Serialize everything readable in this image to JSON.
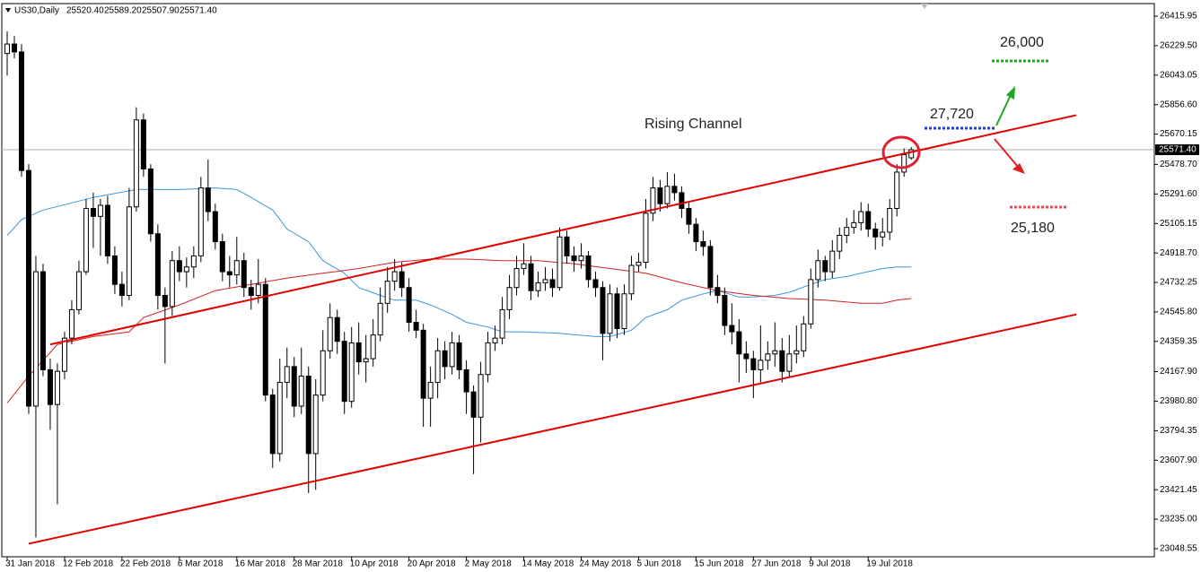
{
  "chart_data": {
    "type": "candlestick",
    "symbol": "US30,Daily",
    "header_values": [
      "25520.40",
      "25589.20",
      "25507.90",
      "25571.40"
    ],
    "price_tag": "25571.40",
    "annotations": [
      "Rising Channel",
      "26,000",
      "27,720",
      "25,180"
    ],
    "xlim": [
      -0.75,
      159.875
    ],
    "ylim": [
      23003,
      26490
    ],
    "yticks": [
      26415.95,
      {
        "value": 26229.5,
        "label": "26229.50"
      },
      26043.05,
      {
        "value": 25856.6,
        "label": "25856.60"
      },
      25670.15,
      {
        "value": 25478.7,
        "label": "25478.70"
      },
      {
        "value": 25291.6,
        "label": "25291.60"
      },
      25105.15,
      {
        "value": 24918.7,
        "label": "24918.70"
      },
      24732.25,
      {
        "value": 24545.8,
        "label": "24545.80"
      },
      24359.35,
      {
        "value": 24167.9,
        "label": "24167.90"
      },
      {
        "value": 23980.8,
        "label": "23980.80"
      },
      23794.35,
      {
        "value": 23607.9,
        "label": "23607.90"
      },
      23421.45,
      {
        "value": 23235,
        "label": "23235.00"
      },
      23048.55
    ],
    "xticks": [
      {
        "value": 0,
        "label": "31 Jan 2018"
      },
      {
        "value": 8,
        "label": "12 Feb 2018"
      },
      {
        "value": 16,
        "label": "22 Feb 2018"
      },
      {
        "value": 24,
        "label": "6 Mar 2018"
      },
      {
        "value": 32,
        "label": "16 Mar 2018"
      },
      {
        "value": 40,
        "label": "28 Mar 2018"
      },
      {
        "value": 48,
        "label": "10 Apr 2018"
      },
      {
        "value": 56,
        "label": "20 Apr 2018"
      },
      {
        "value": 64,
        "label": "2 May 2018"
      },
      {
        "value": 72,
        "label": "14 May 2018"
      },
      {
        "value": 80,
        "label": "24 May 2018"
      },
      {
        "value": 88,
        "label": "5 Jun 2018"
      },
      {
        "value": 96,
        "label": "15 Jun 2018"
      },
      {
        "value": 104,
        "label": "27 Jun 2018"
      },
      {
        "value": 112,
        "label": "9 Jul 2018"
      },
      {
        "value": 120,
        "label": "19 Jul 2018"
      }
    ],
    "up_color": "#ffffff",
    "down_color": "#000000",
    "current_price_line": true,
    "open": [
      26180,
      26240,
      26190,
      25440,
      23950,
      24800,
      24180,
      23960,
      24170,
      24380,
      24560,
      24800,
      25200,
      25150,
      25220,
      24900,
      24720,
      24650,
      25210,
      25760,
      25450,
      25040,
      24650,
      24580,
      24870,
      24800,
      24830,
      24900,
      25330,
      25180,
      24990,
      24800,
      24780,
      24870,
      24700,
      24650,
      24720,
      24020,
      23650,
      24100,
      24200,
      23950,
      24140,
      23650,
      24020,
      24300,
      24510,
      24360,
      23980,
      24350,
      24230,
      24250,
      24400,
      24600,
      24740,
      24800,
      24700,
      24480,
      24430,
      24000,
      24100,
      24300,
      24200,
      24350,
      24180,
      24040,
      23880,
      24150,
      24350,
      24380,
      24560,
      24700,
      24820,
      24850,
      24680,
      24730,
      24750,
      24700,
      25020,
      24900,
      24870,
      24900,
      24750,
      24700,
      24410,
      24660,
      24440,
      24660,
      24840,
      24860,
      25170,
      25330,
      25230,
      25340,
      25300,
      25200,
      25100,
      24990,
      24960,
      24700,
      24650,
      24460,
      24420,
      24280,
      24250,
      24180,
      24240,
      24280,
      24300,
      24170,
      24280,
      24300,
      24470,
      24750,
      24870,
      24800,
      24930,
      25030,
      25080,
      25110,
      25180,
      25070,
      25020,
      25050,
      25200,
      25430,
      25520.4
    ],
    "high": [
      26320,
      26290,
      26240,
      25480,
      24900,
      24850,
      24250,
      24220,
      24420,
      24620,
      24870,
      25260,
      25300,
      25260,
      25280,
      24960,
      24800,
      25330,
      25840,
      25800,
      25480,
      25100,
      24700,
      24930,
      24960,
      24890,
      24960,
      25400,
      25510,
      25230,
      25040,
      24900,
      25020,
      24920,
      24750,
      24880,
      24760,
      24060,
      24250,
      24320,
      24260,
      24320,
      24200,
      24120,
      24430,
      24600,
      24560,
      24420,
      24450,
      24480,
      24400,
      24500,
      24700,
      24830,
      24880,
      24860,
      24760,
      24560,
      24470,
      24200,
      24380,
      24360,
      24420,
      24400,
      24240,
      24080,
      24230,
      24420,
      24460,
      24640,
      24780,
      24900,
      24980,
      24900,
      24800,
      24830,
      24820,
      25080,
      25060,
      24960,
      24980,
      24930,
      24800,
      24740,
      24720,
      24700,
      24720,
      24900,
      24920,
      25260,
      25400,
      25380,
      25430,
      25420,
      25340,
      25240,
      25140,
      25060,
      25000,
      24780,
      24700,
      24600,
      24500,
      24360,
      24300,
      24460,
      24360,
      24480,
      24380,
      24400,
      24460,
      24520,
      24820,
      24940,
      24900,
      25000,
      25080,
      25140,
      25190,
      25240,
      25230,
      25110,
      25140,
      25260,
      25480,
      25580,
      25589.2
    ],
    "low": [
      26040,
      26150,
      25400,
      23900,
      23120,
      24140,
      23800,
      23330,
      24120,
      24340,
      24530,
      24780,
      24950,
      24900,
      24850,
      24660,
      24580,
      24620,
      25180,
      25400,
      24990,
      24560,
      24220,
      24520,
      24740,
      24700,
      24760,
      24860,
      25120,
      24940,
      24740,
      24700,
      24720,
      24640,
      24560,
      24600,
      23980,
      23560,
      23600,
      24000,
      23880,
      23900,
      23400,
      23420,
      23980,
      24250,
      24280,
      23900,
      23940,
      24150,
      24100,
      24200,
      24360,
      24540,
      24680,
      24640,
      24420,
      24380,
      23820,
      23820,
      24000,
      24120,
      24150,
      24120,
      23900,
      23520,
      23720,
      24100,
      24300,
      24340,
      24500,
      24650,
      24780,
      24620,
      24640,
      24680,
      24640,
      24680,
      24850,
      24800,
      24820,
      24700,
      24640,
      24240,
      24360,
      24380,
      24400,
      24620,
      24800,
      24820,
      25120,
      25180,
      25200,
      25250,
      25140,
      25040,
      24930,
      24900,
      24650,
      24600,
      24400,
      24340,
      24100,
      24160,
      24000,
      24100,
      24180,
      24200,
      24100,
      24130,
      24220,
      24260,
      24440,
      24700,
      24740,
      24760,
      24880,
      24980,
      25040,
      25060,
      25020,
      24940,
      24960,
      25000,
      25150,
      25400,
      25507.9
    ],
    "close": [
      26240,
      26190,
      25440,
      23950,
      24800,
      24180,
      23960,
      24170,
      24380,
      24560,
      24800,
      25200,
      25150,
      25220,
      24900,
      24720,
      24650,
      25210,
      25760,
      25450,
      25040,
      24650,
      24580,
      24870,
      24800,
      24830,
      24900,
      25330,
      25180,
      24990,
      24800,
      24780,
      24870,
      24700,
      24650,
      24720,
      24020,
      23650,
      24100,
      24200,
      23950,
      24140,
      23650,
      24020,
      24300,
      24510,
      24360,
      23980,
      24350,
      24230,
      24250,
      24400,
      24600,
      24740,
      24800,
      24700,
      24480,
      24430,
      24000,
      24100,
      24300,
      24200,
      24350,
      24180,
      24040,
      23880,
      24150,
      24350,
      24380,
      24560,
      24700,
      24820,
      24850,
      24680,
      24730,
      24750,
      24700,
      25020,
      24900,
      24870,
      24900,
      24750,
      24700,
      24410,
      24660,
      24440,
      24660,
      24840,
      24860,
      25170,
      25330,
      25230,
      25340,
      25300,
      25200,
      25100,
      24990,
      24960,
      24700,
      24650,
      24460,
      24420,
      24280,
      24250,
      24180,
      24240,
      24280,
      24300,
      24170,
      24280,
      24300,
      24470,
      24750,
      24870,
      24800,
      24930,
      25030,
      25080,
      25110,
      25180,
      25070,
      25020,
      25050,
      25200,
      25430,
      25540,
      25571.4
    ],
    "moving_averages": [
      {
        "color": "#3a96e0",
        "x": [
          0,
          2,
          5,
          12,
          18,
          24,
          29,
          32,
          34,
          37,
          39,
          42,
          44,
          47,
          49,
          52,
          54,
          57,
          59,
          62,
          64,
          67,
          69,
          72,
          77,
          82,
          84,
          87,
          89,
          92,
          94,
          97,
          99,
          102,
          104,
          107,
          109,
          112,
          114,
          117,
          119,
          122,
          124,
          126
        ],
        "values": [
          25030,
          25130,
          25190,
          25270,
          25320,
          25320,
          25330,
          25320,
          25270,
          25190,
          25070,
          24990,
          24870,
          24790,
          24700,
          24650,
          24620,
          24620,
          24590,
          24530,
          24480,
          24450,
          24420,
          24420,
          24410,
          24390,
          24390,
          24430,
          24510,
          24560,
          24620,
          24660,
          24680,
          24640,
          24640,
          24650,
          24670,
          24720,
          24750,
          24770,
          24790,
          24820,
          24830,
          24830
        ]
      },
      {
        "color": "#d42020",
        "x": [
          0,
          3,
          7,
          12,
          17,
          19,
          24,
          29,
          34,
          39,
          44,
          49,
          54,
          59,
          64,
          69,
          74,
          79,
          84,
          89,
          94,
          99,
          104,
          109,
          114,
          119,
          122,
          124,
          126
        ],
        "values": [
          23970,
          24140,
          24340,
          24390,
          24420,
          24510,
          24590,
          24680,
          24720,
          24760,
          24790,
          24820,
          24860,
          24880,
          24880,
          24870,
          24870,
          24850,
          24820,
          24790,
          24730,
          24680,
          24650,
          24630,
          24620,
          24600,
          24600,
          24620,
          24630
        ]
      }
    ],
    "channel": [
      {
        "color": "#e00000",
        "x": [
          6,
          149
        ],
        "y": [
          24340,
          25790
        ]
      },
      {
        "color": "#e00000",
        "x": [
          3,
          149
        ],
        "y": [
          23080,
          24530
        ]
      }
    ]
  }
}
